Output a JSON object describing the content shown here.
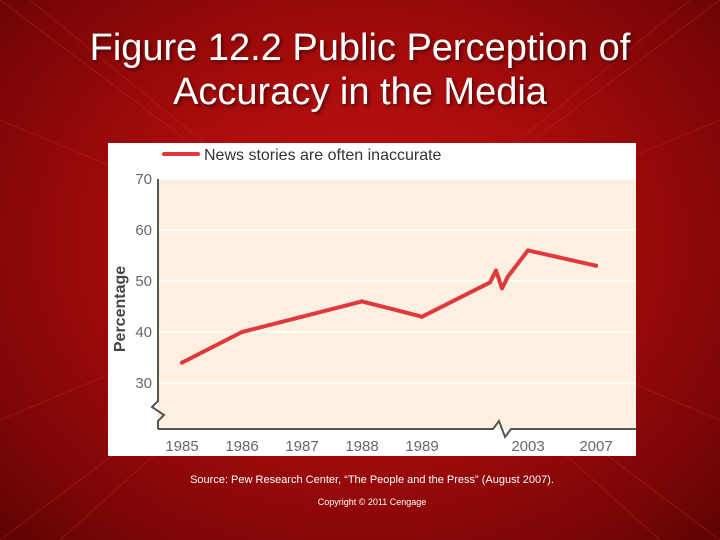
{
  "slide": {
    "title_line1": "Figure 12.2  Public Perception of",
    "title_line2": "Accuracy in the Media",
    "source": "Source: Pew Research Center, “The People and the Press” (August 2007).",
    "copyright": "Copyright © 2011 Cengage"
  },
  "colors": {
    "background": "#b10e0e",
    "plot_area": "#fdf0e0",
    "line": "#e0393b",
    "text": "#ffffff"
  },
  "chart_data": {
    "type": "line",
    "title": "",
    "xlabel": "",
    "ylabel": "Percentage",
    "categories": [
      "1985",
      "1986",
      "1987",
      "1988",
      "1989",
      "2003",
      "2007"
    ],
    "series": [
      {
        "name": "News stories are often inaccurate",
        "values": [
          34,
          40,
          43,
          46,
          43,
          56,
          53
        ]
      }
    ],
    "yticks": [
      "70",
      "60",
      "50",
      "40",
      "30"
    ],
    "ylim": [
      22,
      70
    ],
    "axis_break": "between 1989 and 2003",
    "grid": true,
    "legend": "top-left"
  }
}
